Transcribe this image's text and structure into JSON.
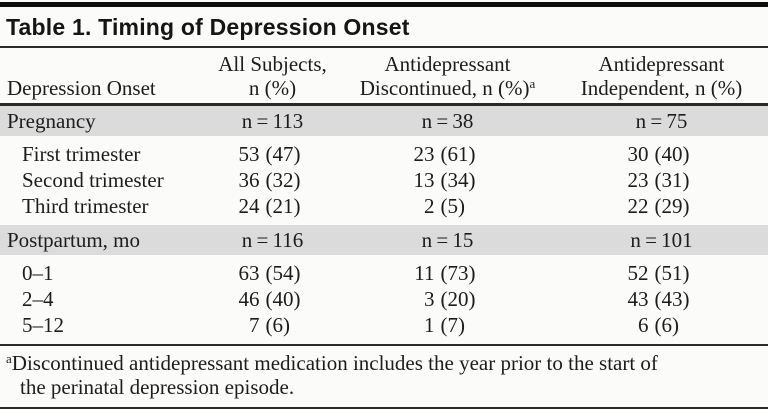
{
  "page": {
    "background_color": "#fbfbf9",
    "band_color": "#dbdbdb",
    "rule_color": "#2a2a2a",
    "text_color": "#1c1c1c"
  },
  "table": {
    "title": "Table 1. Timing of Depression Onset",
    "columns": [
      {
        "line1": "",
        "line2": "Depression Onset"
      },
      {
        "line1": "All Subjects,",
        "line2": "n (%)"
      },
      {
        "line1": "Antidepressant",
        "line2": "Discontinued, n (%)",
        "sup": "a"
      },
      {
        "line1": "Antidepressant",
        "line2": "Independent, n (%)"
      }
    ],
    "sections": [
      {
        "header": {
          "label": "Pregnancy",
          "values": [
            "n = 113",
            "n = 38",
            "n = 75"
          ]
        },
        "rows": [
          {
            "label": "First trimester",
            "cells": [
              {
                "n": "53",
                "pct": "(47)"
              },
              {
                "n": "23",
                "pct": "(61)"
              },
              {
                "n": "30",
                "pct": "(40)"
              }
            ]
          },
          {
            "label": "Second trimester",
            "cells": [
              {
                "n": "36",
                "pct": "(32)"
              },
              {
                "n": "13",
                "pct": "(34)"
              },
              {
                "n": "23",
                "pct": "(31)"
              }
            ]
          },
          {
            "label": "Third trimester",
            "cells": [
              {
                "n": "24",
                "pct": "(21)"
              },
              {
                "n": "2",
                "pct": "(5)"
              },
              {
                "n": "22",
                "pct": "(29)"
              }
            ]
          }
        ]
      },
      {
        "header": {
          "label": "Postpartum, mo",
          "values": [
            "n = 116",
            "n = 15",
            "n = 101"
          ]
        },
        "rows": [
          {
            "label": "0–1",
            "cells": [
              {
                "n": "63",
                "pct": "(54)"
              },
              {
                "n": "11",
                "pct": "(73)"
              },
              {
                "n": "52",
                "pct": "(51)"
              }
            ]
          },
          {
            "label": "2–4",
            "cells": [
              {
                "n": "46",
                "pct": "(40)"
              },
              {
                "n": "3",
                "pct": "(20)"
              },
              {
                "n": "43",
                "pct": "(43)"
              }
            ]
          },
          {
            "label": "5–12",
            "cells": [
              {
                "n": "7",
                "pct": "(6)"
              },
              {
                "n": "1",
                "pct": "(7)"
              },
              {
                "n": "6",
                "pct": "(6)"
              }
            ]
          }
        ]
      }
    ],
    "footnote": {
      "marker": "a",
      "line1": "Discontinued antidepressant medication includes the year prior to the start of",
      "line2": "the perinatal depression episode."
    }
  }
}
